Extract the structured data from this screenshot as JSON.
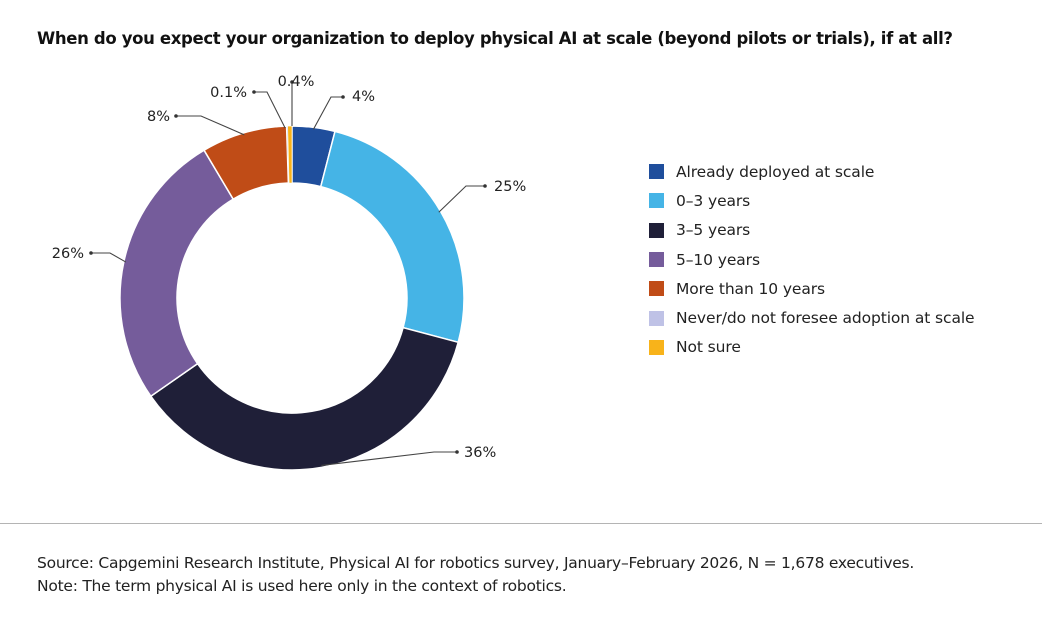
{
  "title": "When do you expect your organization to deploy physical AI at scale (beyond pilots or trials), if at all?",
  "chart_data": {
    "type": "pie",
    "variant": "donut",
    "title": "When do you expect your organization to deploy physical AI at scale (beyond pilots or trials), if at all?",
    "categories": [
      "Already deployed at scale",
      "0–3 years",
      "3–5 years",
      "5–10 years",
      "More than 10 years",
      "Never/do not foresee adoption at scale",
      "Not sure"
    ],
    "values": [
      4,
      25,
      36,
      26,
      8,
      0.1,
      0.4
    ],
    "data_labels": [
      "4%",
      "25%",
      "36%",
      "26%",
      "8%",
      "0.1%",
      "0.4%"
    ],
    "colors": [
      "#1f4e9c",
      "#45b4e6",
      "#1f1f38",
      "#755c9b",
      "#c04c17",
      "#bfc2e6",
      "#f8b31a"
    ],
    "unit": "%",
    "start": "top",
    "direction": "clockwise",
    "legend_position": "right"
  },
  "legend": [
    {
      "label": "Already deployed at scale",
      "color": "#1f4e9c"
    },
    {
      "label": "0–3 years",
      "color": "#45b4e6"
    },
    {
      "label": "3–5 years",
      "color": "#1f1f38"
    },
    {
      "label": "5–10 years",
      "color": "#755c9b"
    },
    {
      "label": "More than 10 years",
      "color": "#c04c17"
    },
    {
      "label": "Never/do not foresee adoption at scale",
      "color": "#bfc2e6"
    },
    {
      "label": "Not sure",
      "color": "#f8b31a"
    }
  ],
  "footer": {
    "source": "Source: Capgemini Research Institute, Physical AI for robotics survey, January–February 2026, N = 1,678 executives.",
    "note": "Note: The term physical AI is used here only in the context of robotics."
  }
}
